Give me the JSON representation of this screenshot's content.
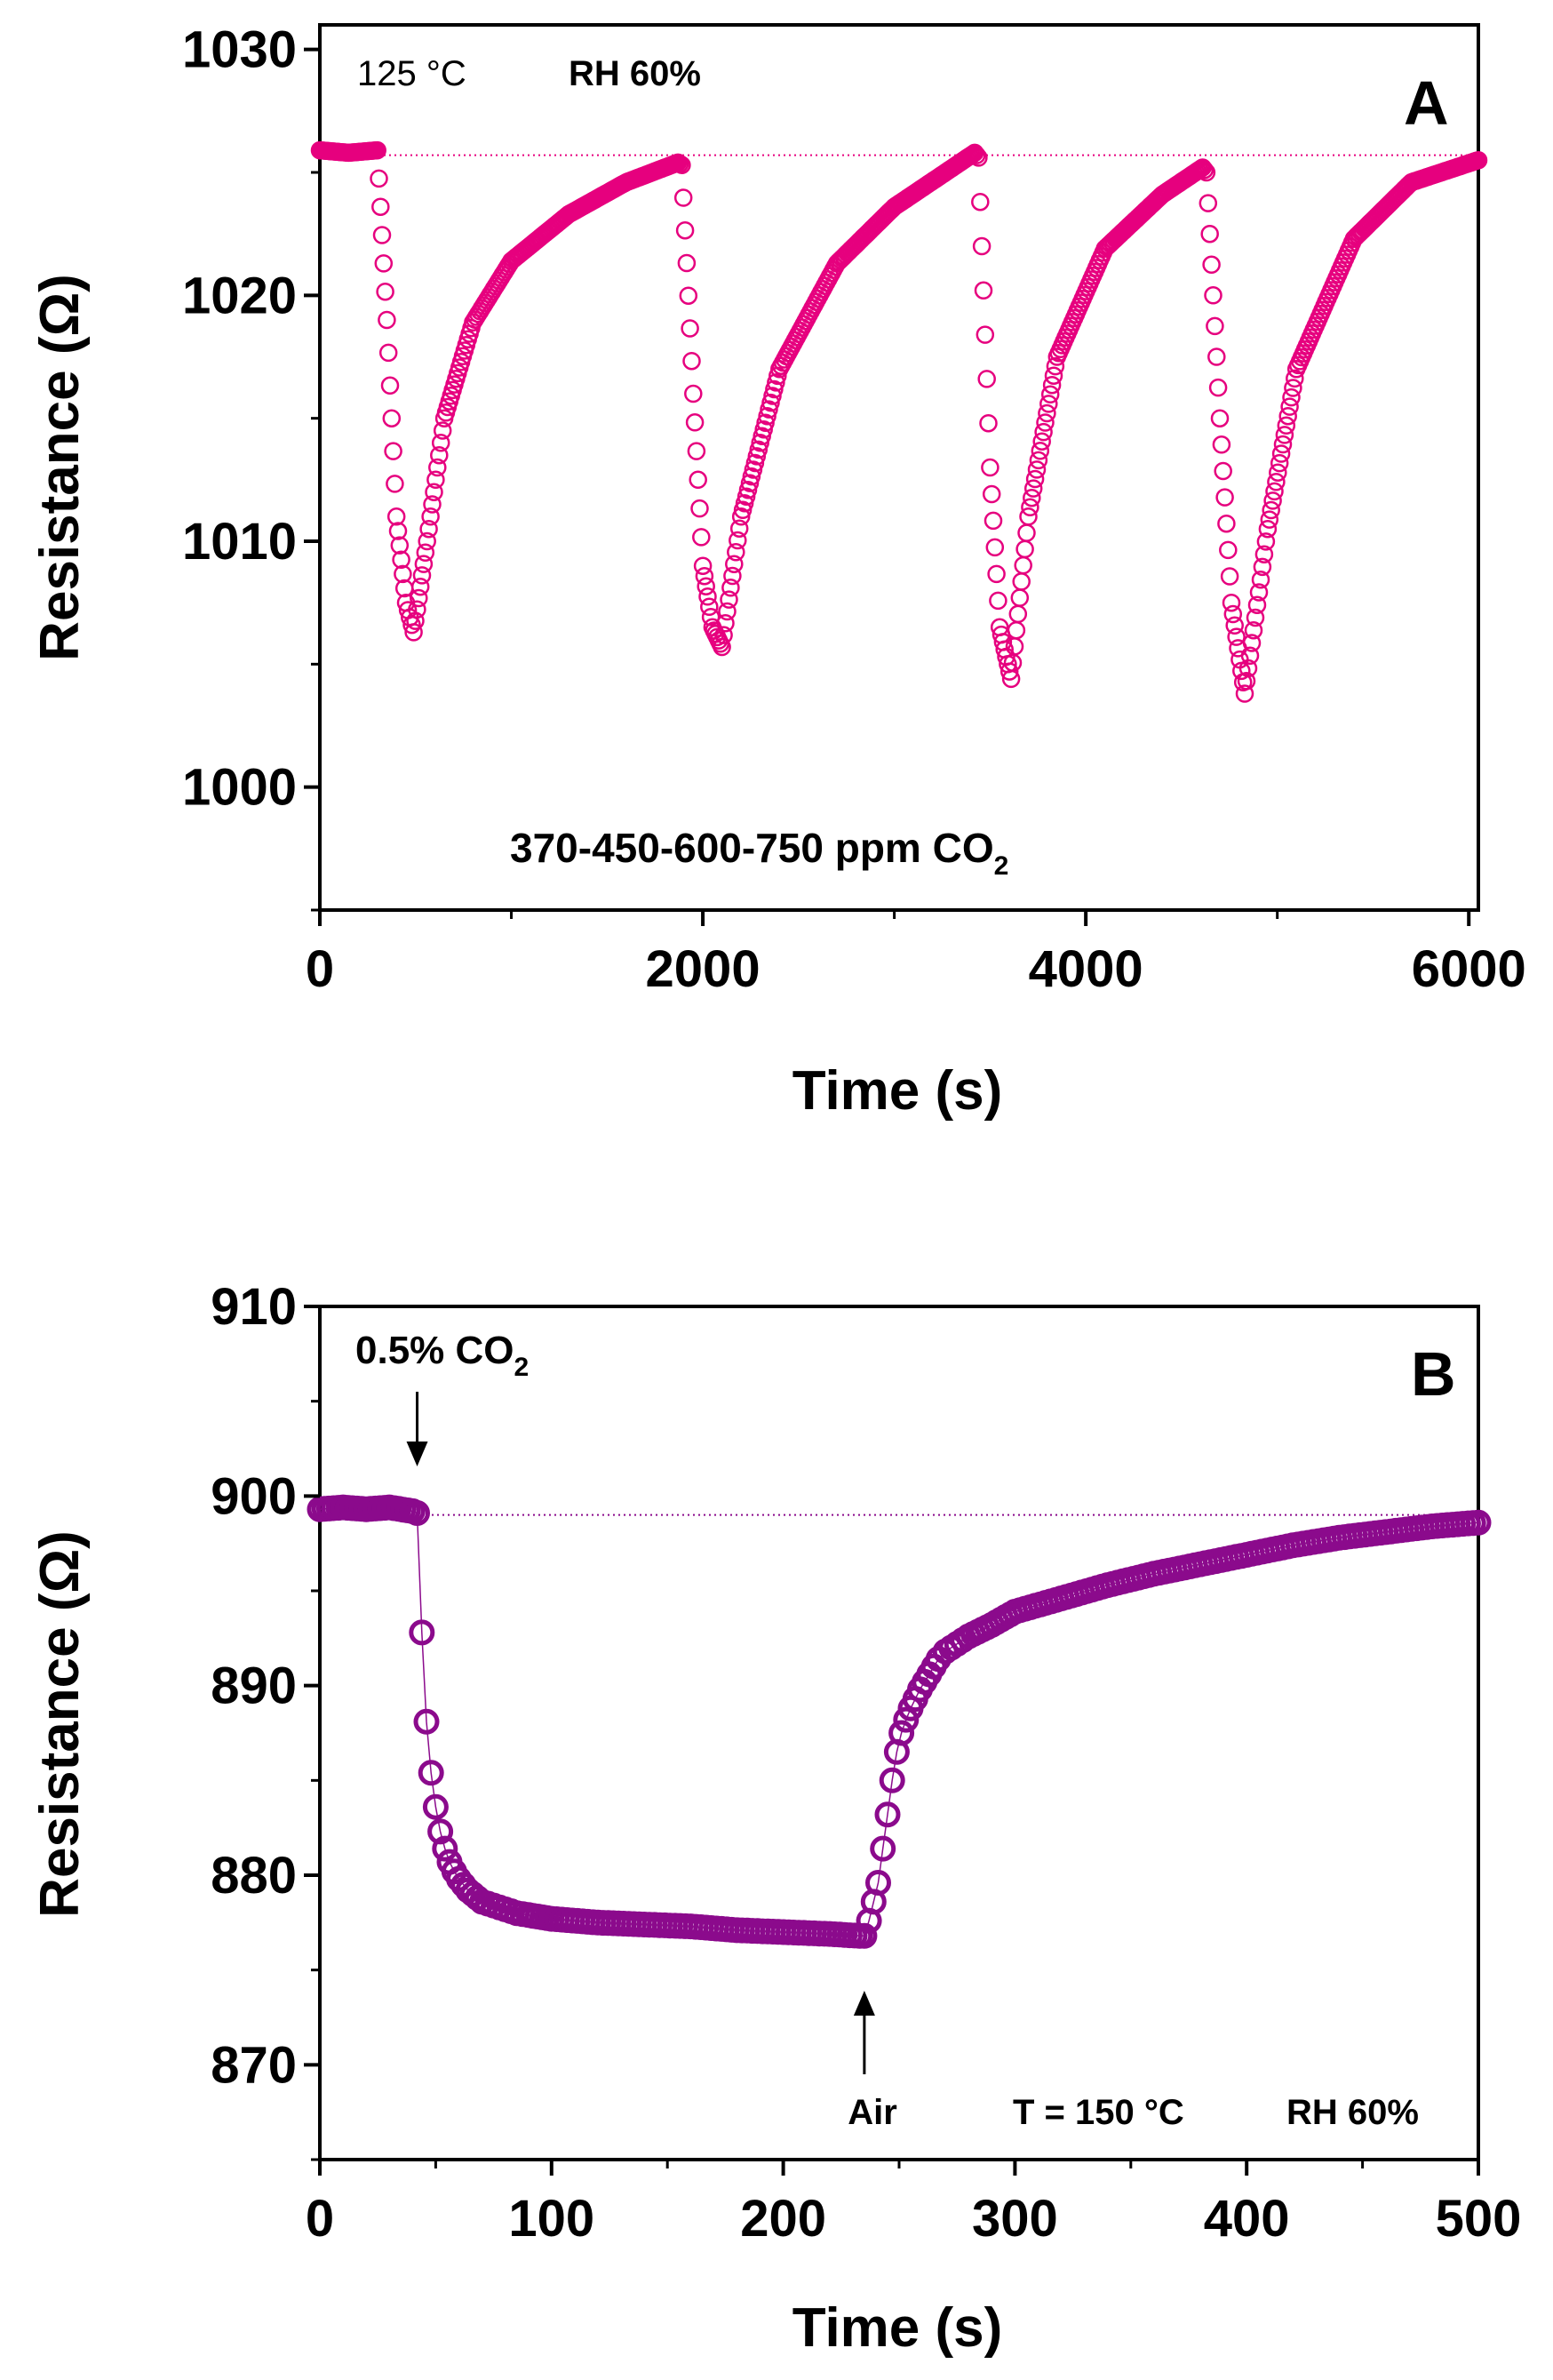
{
  "chart_data": [
    {
      "id": "A",
      "type": "scatter",
      "panel_label": "A",
      "xlabel": "Time (s)",
      "ylabel": "Resistance (Ω)",
      "xlim": [
        0,
        6050
      ],
      "ylim": [
        995,
        1031
      ],
      "xticks": [
        0,
        2000,
        4000,
        6000
      ],
      "xtick_labels": [
        "0",
        "2000",
        "4000",
        "6000"
      ],
      "yticks": [
        1000,
        1010,
        1020,
        1030
      ],
      "ytick_labels": [
        "1000",
        "1010",
        "1020",
        "1030"
      ],
      "color": "#e6007e",
      "marker": "open-circle",
      "baseline": 1025.7,
      "annotations": {
        "temperature": "125 °C",
        "humidity": "RH 60%",
        "concentrations": "370-450-600-750 ppm CO",
        "concentrations_sub": "2"
      },
      "cycles": [
        {
          "on": 310,
          "min_t": 490,
          "min_r": 1006.3,
          "off": 1870,
          "end_r": 1025.4
        },
        {
          "on": 1890,
          "min_t": 2100,
          "min_r": 1005.7,
          "off": 3420,
          "end_r": 1025.8
        },
        {
          "on": 3440,
          "min_t": 3610,
          "min_r": 1004.4,
          "off": 4610,
          "end_r": 1025.2
        },
        {
          "on": 4630,
          "min_t": 4830,
          "min_r": 1003.8,
          "off": 6050,
          "end_r": 1025.5
        }
      ],
      "series": [
        {
          "name": "Resistance",
          "x": [
            0,
            150,
            300,
            350,
            400,
            450,
            490,
            560,
            650,
            800,
            1000,
            1300,
            1600,
            1870,
            1890,
            1950,
            2000,
            2050,
            2100,
            2200,
            2400,
            2700,
            3000,
            3420,
            3440,
            3500,
            3550,
            3610,
            3700,
            3850,
            4100,
            4400,
            4610,
            4630,
            4700,
            4760,
            4830,
            4950,
            5100,
            5400,
            5700,
            6050
          ],
          "y": [
            1025.9,
            1025.8,
            1025.9,
            1019,
            1011,
            1007.5,
            1006.3,
            1010,
            1015,
            1018.9,
            1021.4,
            1023.3,
            1024.6,
            1025.4,
            1025.3,
            1016,
            1009,
            1006.5,
            1005.7,
            1011,
            1017,
            1021.3,
            1023.6,
            1025.8,
            1025.6,
            1013,
            1006.5,
            1004.4,
            1011,
            1017.5,
            1021.9,
            1024.1,
            1025.2,
            1025,
            1015,
            1007.5,
            1003.8,
            1010.5,
            1017,
            1022.3,
            1024.6,
            1025.5
          ]
        }
      ]
    },
    {
      "id": "B",
      "type": "scatter",
      "panel_label": "B",
      "xlabel": "Time (s)",
      "ylabel": "Resistance (Ω)",
      "xlim": [
        0,
        500
      ],
      "ylim": [
        865,
        910
      ],
      "xticks": [
        0,
        100,
        200,
        300,
        400,
        500
      ],
      "xtick_labels": [
        "0",
        "100",
        "200",
        "300",
        "400",
        "500"
      ],
      "yticks": [
        870,
        880,
        890,
        900,
        910
      ],
      "ytick_labels": [
        "870",
        "880",
        "890",
        "900",
        "910"
      ],
      "color": "#8b0a8c",
      "marker": "open-circle",
      "baseline": 899.0,
      "annotations": {
        "gas_on": "0.5% CO",
        "gas_on_sub": "2",
        "gas_on_time": 42,
        "gas_off": "Air",
        "gas_off_time": 235,
        "temperature": "T = 150 °C",
        "humidity": "RH 60%"
      },
      "series": [
        {
          "name": "Resistance",
          "x": [
            0,
            10,
            20,
            30,
            40,
            42,
            44,
            46,
            48,
            50,
            52,
            54,
            56,
            58,
            60,
            62,
            64,
            66,
            68,
            70,
            75,
            80,
            85,
            90,
            100,
            120,
            140,
            160,
            180,
            200,
            220,
            233,
            235,
            237,
            239,
            241,
            243,
            245,
            247,
            249,
            251,
            253,
            255,
            257,
            259,
            261,
            263,
            265,
            267,
            270,
            275,
            280,
            290,
            300,
            320,
            340,
            360,
            380,
            400,
            420,
            440,
            460,
            480,
            500
          ],
          "y": [
            899.3,
            899.4,
            899.3,
            899.4,
            899.2,
            899.1,
            892.8,
            888.1,
            885.4,
            883.6,
            882.3,
            881.4,
            880.7,
            880.2,
            879.8,
            879.5,
            879.2,
            879.0,
            878.8,
            878.6,
            878.4,
            878.2,
            878.0,
            877.9,
            877.7,
            877.5,
            877.4,
            877.3,
            877.1,
            877.0,
            876.9,
            876.8,
            876.8,
            877.6,
            878.6,
            879.6,
            881.4,
            883.2,
            885.0,
            886.5,
            887.5,
            888.2,
            888.8,
            889.3,
            889.8,
            890.2,
            890.6,
            891.0,
            891.4,
            891.8,
            892.2,
            892.6,
            893.2,
            893.9,
            894.6,
            895.3,
            895.9,
            896.4,
            896.9,
            897.4,
            897.8,
            898.1,
            898.4,
            898.6
          ]
        }
      ]
    }
  ]
}
